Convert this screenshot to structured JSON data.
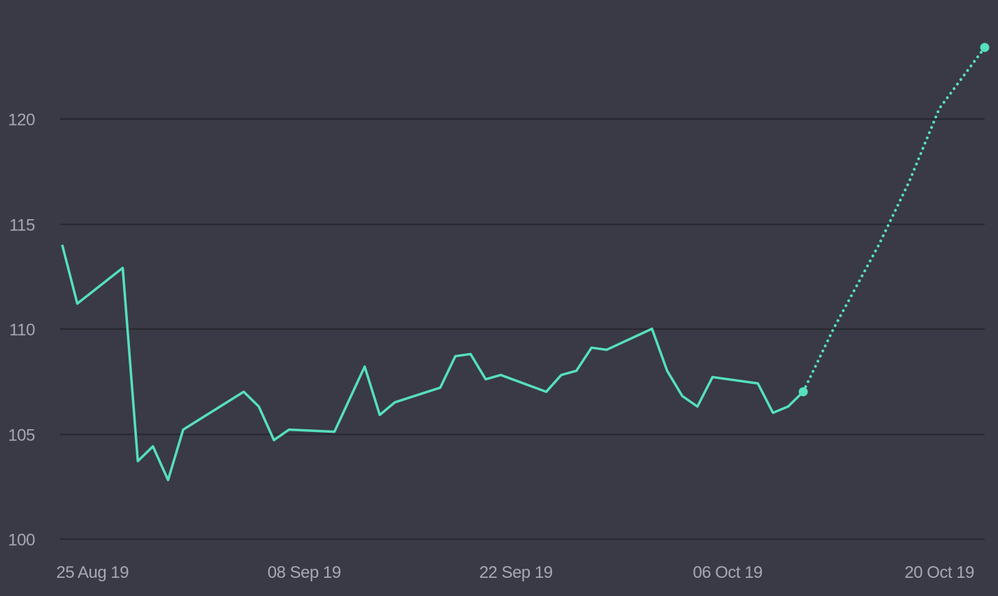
{
  "colors": {
    "background": "#393a46",
    "line": "#56e0bb",
    "grid": "#26272f",
    "text": "#a7a8b4"
  },
  "chart_data": {
    "type": "line",
    "title": "",
    "xlabel": "",
    "ylabel": "",
    "grid": true,
    "legend": "none",
    "ylim": [
      100,
      123.5
    ],
    "xlim": [
      "2019-08-23",
      "2019-10-23"
    ],
    "y_ticks": [
      100,
      105,
      110,
      115,
      120
    ],
    "y_tick_labels": [
      "100",
      "105",
      "110",
      "115",
      "120"
    ],
    "x_ticks": [
      "2019-08-25",
      "2019-09-08",
      "2019-09-22",
      "2019-10-06",
      "2019-10-20"
    ],
    "x_tick_labels": [
      "25 Aug 19",
      "08 Sep 19",
      "22 Sep 19",
      "06 Oct 19",
      "20 Oct 19"
    ],
    "series": [
      {
        "style": "solid",
        "points": [
          {
            "x": "2019-08-23",
            "y": 114.0
          },
          {
            "x": "2019-08-24",
            "y": 111.2
          },
          {
            "x": "2019-08-27",
            "y": 112.9
          },
          {
            "x": "2019-08-28",
            "y": 103.7
          },
          {
            "x": "2019-08-29",
            "y": 104.4
          },
          {
            "x": "2019-08-30",
            "y": 102.8
          },
          {
            "x": "2019-08-31",
            "y": 105.2
          },
          {
            "x": "2019-09-04",
            "y": 107.0
          },
          {
            "x": "2019-09-05",
            "y": 106.3
          },
          {
            "x": "2019-09-06",
            "y": 104.7
          },
          {
            "x": "2019-09-07",
            "y": 105.2
          },
          {
            "x": "2019-09-10",
            "y": 105.1
          },
          {
            "x": "2019-09-12",
            "y": 108.2
          },
          {
            "x": "2019-09-13",
            "y": 105.9
          },
          {
            "x": "2019-09-14",
            "y": 106.5
          },
          {
            "x": "2019-09-17",
            "y": 107.2
          },
          {
            "x": "2019-09-18",
            "y": 108.7
          },
          {
            "x": "2019-09-19",
            "y": 108.8
          },
          {
            "x": "2019-09-20",
            "y": 107.6
          },
          {
            "x": "2019-09-21",
            "y": 107.8
          },
          {
            "x": "2019-09-24",
            "y": 107.0
          },
          {
            "x": "2019-09-25",
            "y": 107.8
          },
          {
            "x": "2019-09-26",
            "y": 108.0
          },
          {
            "x": "2019-09-27",
            "y": 109.1
          },
          {
            "x": "2019-09-28",
            "y": 109.0
          },
          {
            "x": "2019-10-01",
            "y": 110.0
          },
          {
            "x": "2019-10-02",
            "y": 108.0
          },
          {
            "x": "2019-10-03",
            "y": 106.8
          },
          {
            "x": "2019-10-04",
            "y": 106.3
          },
          {
            "x": "2019-10-05",
            "y": 107.7
          },
          {
            "x": "2019-10-08",
            "y": 107.4
          },
          {
            "x": "2019-10-09",
            "y": 106.0
          },
          {
            "x": "2019-10-10",
            "y": 106.3
          },
          {
            "x": "2019-10-11",
            "y": 107.0
          }
        ]
      },
      {
        "style": "dotted",
        "points": [
          {
            "x": "2019-10-11",
            "y": 107.0
          },
          {
            "x": "2019-10-13",
            "y": 110.0
          },
          {
            "x": "2019-10-16",
            "y": 114.0
          },
          {
            "x": "2019-10-18",
            "y": 117.0
          },
          {
            "x": "2019-10-20",
            "y": 120.5
          },
          {
            "x": "2019-10-23",
            "y": 123.4
          }
        ]
      }
    ],
    "markers": [
      {
        "x": "2019-10-11",
        "y": 107.0
      },
      {
        "x": "2019-10-23",
        "y": 123.4
      }
    ]
  }
}
